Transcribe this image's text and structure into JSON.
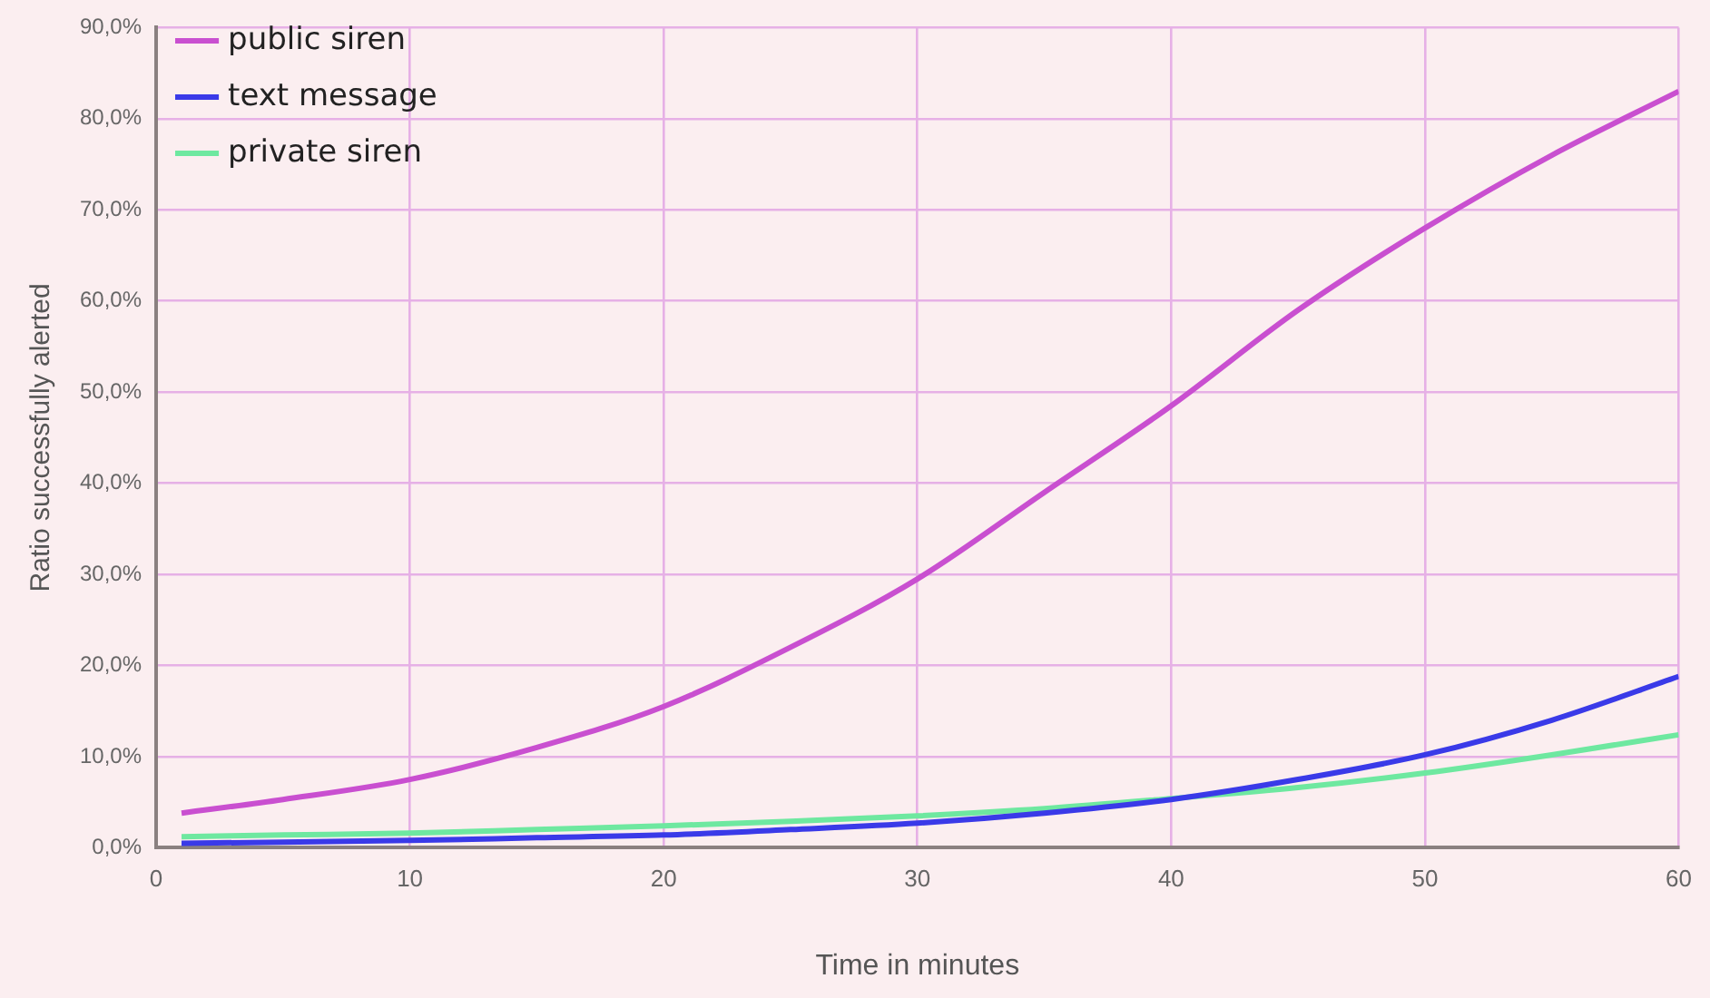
{
  "chart_data": {
    "type": "line",
    "xlabel": "Time in minutes",
    "ylabel": "Ratio successfully alerted",
    "xlim": [
      0,
      60
    ],
    "xticks": [
      0,
      10,
      20,
      30,
      40,
      50,
      60
    ],
    "ylim": [
      0,
      90
    ],
    "yticks": [
      {
        "value": 0,
        "label": "0,0%"
      },
      {
        "value": 10,
        "label": "10,0%"
      },
      {
        "value": 20,
        "label": "20,0%"
      },
      {
        "value": 30,
        "label": "30,0%"
      },
      {
        "value": 40,
        "label": "40,0%"
      },
      {
        "value": 50,
        "label": "50,0%"
      },
      {
        "value": 60,
        "label": "60,0%"
      },
      {
        "value": 70,
        "label": "70,0%"
      },
      {
        "value": 80,
        "label": "80,0%"
      },
      {
        "value": 90,
        "label": "90,0%"
      }
    ],
    "x": [
      1,
      5,
      10,
      15,
      20,
      25,
      30,
      35,
      40,
      45,
      50,
      55,
      60
    ],
    "series": [
      {
        "name": "public siren",
        "color": "#c94fd0",
        "values": [
          3.8,
          5.3,
          7.5,
          11,
          15.5,
          22,
          29.5,
          39,
          48.5,
          59,
          68,
          76,
          83
        ]
      },
      {
        "name": "text message",
        "color": "#3a3ae8",
        "values": [
          0.5,
          0.6,
          0.8,
          1.1,
          1.4,
          2,
          2.7,
          3.8,
          5.3,
          7.5,
          10.2,
          14,
          18.8
        ]
      },
      {
        "name": "private siren",
        "color": "#6ee8a0",
        "values": [
          1.2,
          1.4,
          1.6,
          2,
          2.4,
          2.9,
          3.5,
          4.3,
          5.4,
          6.6,
          8.2,
          10.2,
          12.4
        ]
      }
    ],
    "grid": true,
    "legend": "top left",
    "line_style": "solid",
    "marker": "none"
  }
}
